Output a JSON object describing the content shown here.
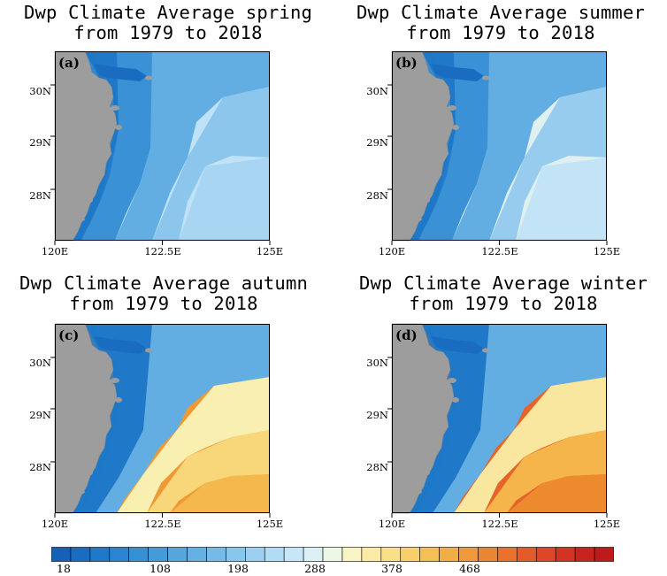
{
  "panels": [
    {
      "id": "a",
      "label": "(a)",
      "title_line1": "Dwp Climate Average spring",
      "title_line2": "from 1979 to 2018",
      "season": "spring",
      "ocean_colors": [
        "#1f78c8",
        "#3a91d6",
        "#62aee2",
        "#8cc6ec",
        "#a8d6f2",
        "#bfe2f6"
      ]
    },
    {
      "id": "b",
      "label": "(b)",
      "title_line1": "Dwp Climate Average summer",
      "title_line2": "from 1979 to 2018",
      "season": "summer",
      "ocean_colors": [
        "#1f78c8",
        "#3a91d6",
        "#62aee2",
        "#98ccee",
        "#c3e4f6",
        "#dff0f0"
      ]
    },
    {
      "id": "c",
      "label": "(c)",
      "title_line1": "Dwp Climate Average autumn",
      "title_line2": "from 1979 to 2018",
      "season": "autumn",
      "ocean_colors": [
        "#1f78c8",
        "#62aee2",
        "#f9efb0",
        "#f8d77a",
        "#f4b84c",
        "#ef9934"
      ]
    },
    {
      "id": "d",
      "label": "(d)",
      "title_line1": "Dwp Climate Average winter",
      "title_line2": "from 1979 to 2018",
      "season": "winter",
      "ocean_colors": [
        "#1f78c8",
        "#62aee2",
        "#f9e7a0",
        "#f5b54a",
        "#ee8a2e",
        "#e5642a"
      ]
    }
  ],
  "axes": {
    "lat_ticks": [
      "30N",
      "29N",
      "28N"
    ],
    "lon_ticks": [
      "120E",
      "122.5E",
      "125E"
    ]
  },
  "colorbar": {
    "labels": [
      "18",
      "108",
      "198",
      "288",
      "378",
      "468"
    ],
    "colors": [
      "#1561b8",
      "#1a6cc0",
      "#2078c8",
      "#2a84cf",
      "#3690d5",
      "#449bda",
      "#54a6df",
      "#64b0e3",
      "#76bbe8",
      "#89c6ec",
      "#9dd0f0",
      "#b2dbf4",
      "#c8e6f6",
      "#ddf0f4",
      "#eef7e6",
      "#f9f4c4",
      "#faeba4",
      "#f9df88",
      "#f7d06c",
      "#f5bf56",
      "#f2ad46",
      "#ef993a",
      "#ec8531",
      "#e8712c",
      "#e35c28",
      "#dc4725",
      "#d23422",
      "#c8241f",
      "#bd1a1d"
    ]
  }
}
